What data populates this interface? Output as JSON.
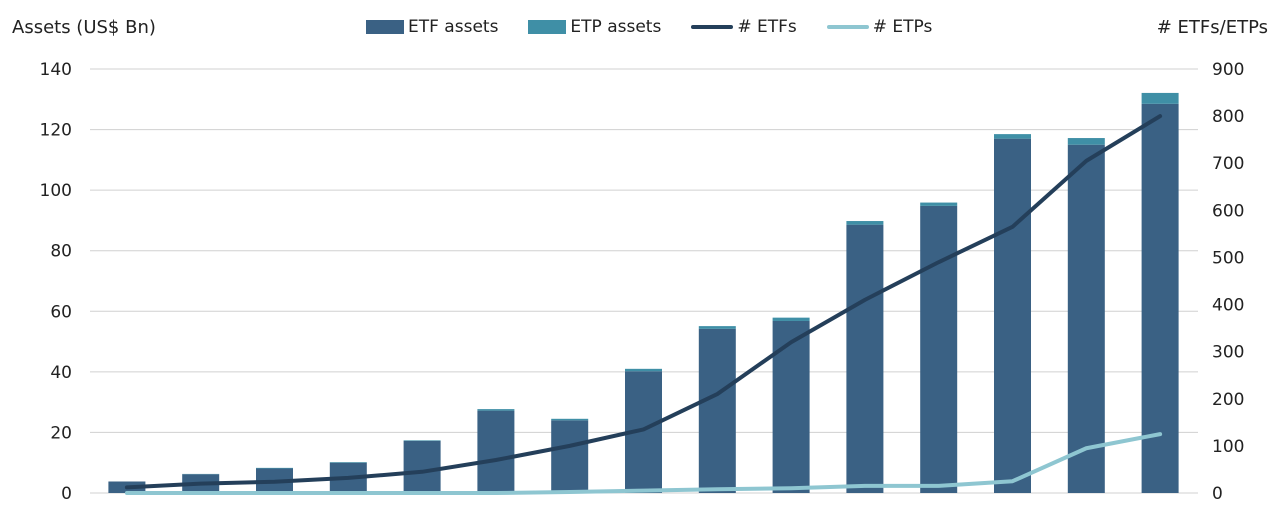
{
  "chart_data": {
    "type": "bar",
    "title": "",
    "ylabel": "Assets (US$ Bn)",
    "y2label": "# ETFs/ETPs",
    "ylim": [
      0,
      140
    ],
    "y2lim": [
      0,
      900
    ],
    "yticks": [
      0,
      20,
      40,
      60,
      80,
      100,
      120,
      140
    ],
    "y2ticks": [
      0,
      100,
      200,
      300,
      400,
      500,
      600,
      700,
      800,
      900
    ],
    "categories": [
      "",
      "",
      "",
      "",
      "",
      "",
      "",
      "",
      "",
      "",
      "",
      "",
      "",
      "",
      ""
    ],
    "grid": true,
    "legend_position": "top",
    "series": [
      {
        "name": "ETF assets",
        "kind": "bar",
        "axis": "left",
        "color": "#3a6184",
        "values": [
          3.8,
          6.2,
          8.1,
          10.0,
          17.2,
          27.2,
          24.0,
          40.2,
          54.2,
          56.8,
          88.6,
          94.8,
          117.0,
          115.0,
          128.5
        ]
      },
      {
        "name": "ETP assets",
        "kind": "bar-stacked",
        "axis": "left",
        "color": "#3f8fa6",
        "values": [
          0.0,
          0.1,
          0.2,
          0.2,
          0.2,
          0.5,
          0.5,
          0.8,
          0.9,
          1.1,
          1.2,
          1.1,
          1.5,
          2.2,
          3.6
        ]
      },
      {
        "name": "# ETFs",
        "kind": "line",
        "axis": "right",
        "color": "#243f5a",
        "values": [
          12,
          20,
          24,
          32,
          45,
          70,
          100,
          135,
          210,
          320,
          410,
          490,
          565,
          705,
          800
        ]
      },
      {
        "name": "# ETPs",
        "kind": "line",
        "axis": "right",
        "color": "#8ec6d1",
        "values": [
          0,
          0,
          0,
          0,
          0,
          0,
          2,
          5,
          8,
          10,
          15,
          15,
          25,
          95,
          125
        ]
      }
    ]
  }
}
